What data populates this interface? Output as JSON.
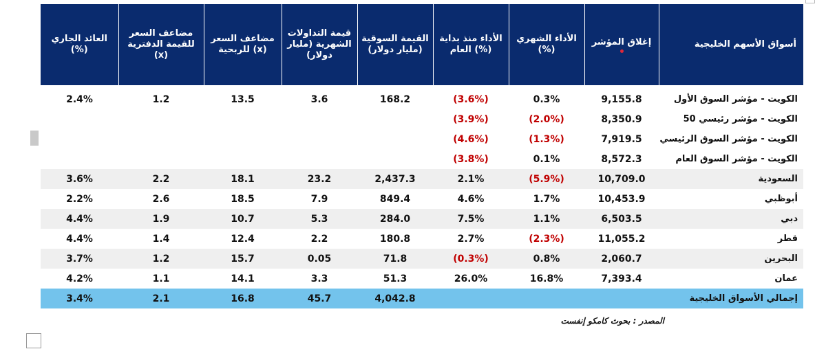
{
  "headers": [
    "أسواق الأسهم الخليجية",
    "إغلاق المؤشر",
    "الأداء الشهري (%)",
    "الأداء منذ بداية العام (%)",
    "القيمة السوقية (مليار دولار)",
    "قيمة التداولات الشهرية (مليار دولار)",
    "مضاعف السعر للربحية (x)",
    "مضاعف السعر للقيمة الدفترية (x)",
    "العائد الجاري (%)"
  ],
  "rows": [
    {
      "name": "الكويت - مؤشر السوق الأول",
      "close": "9,155.8",
      "monthly": "0.3%",
      "monthly_neg": false,
      "ytd": "(3.6%)",
      "ytd_neg": true,
      "mcap": "168.2",
      "turnover": "3.6",
      "pe": "13.5",
      "pb": "1.2",
      "yield": "2.4%",
      "shade": "white"
    },
    {
      "name": "الكويت - مؤشر رئيسي 50",
      "close": "8,350.9",
      "monthly": "(2.0%)",
      "monthly_neg": true,
      "ytd": "(3.9%)",
      "ytd_neg": true,
      "mcap": "",
      "turnover": "",
      "pe": "",
      "pb": "",
      "yield": "",
      "shade": "white"
    },
    {
      "name": "الكويت - مؤشر السوق الرئيسي",
      "close": "7,919.5",
      "monthly": "(1.3%)",
      "monthly_neg": true,
      "ytd": "(4.6%)",
      "ytd_neg": true,
      "mcap": "",
      "turnover": "",
      "pe": "",
      "pb": "",
      "yield": "",
      "shade": "white"
    },
    {
      "name": "الكويت - مؤشر السوق العام",
      "close": "8,572.3",
      "monthly": "0.1%",
      "monthly_neg": false,
      "ytd": "(3.8%)",
      "ytd_neg": true,
      "mcap": "",
      "turnover": "",
      "pe": "",
      "pb": "",
      "yield": "",
      "shade": "white"
    },
    {
      "name": "السعودية",
      "close": "10,709.0",
      "monthly": "(5.9%)",
      "monthly_neg": true,
      "ytd": "2.1%",
      "ytd_neg": false,
      "mcap": "2,437.3",
      "turnover": "23.2",
      "pe": "18.1",
      "pb": "2.2",
      "yield": "3.6%",
      "shade": "grey"
    },
    {
      "name": "أبوظبي",
      "close": "10,453.9",
      "monthly": "1.7%",
      "monthly_neg": false,
      "ytd": "4.6%",
      "ytd_neg": false,
      "mcap": "849.4",
      "turnover": "7.9",
      "pe": "18.5",
      "pb": "2.6",
      "yield": "2.2%",
      "shade": "white"
    },
    {
      "name": "دبي",
      "close": "6,503.5",
      "monthly": "1.1%",
      "monthly_neg": false,
      "ytd": "7.5%",
      "ytd_neg": false,
      "mcap": "284.0",
      "turnover": "5.3",
      "pe": "10.7",
      "pb": "1.9",
      "yield": "4.4%",
      "shade": "grey"
    },
    {
      "name": "قطر",
      "close": "11,055.2",
      "monthly": "(2.3%)",
      "monthly_neg": true,
      "ytd": "2.7%",
      "ytd_neg": false,
      "mcap": "180.8",
      "turnover": "2.2",
      "pe": "12.4",
      "pb": "1.4",
      "yield": "4.4%",
      "shade": "white"
    },
    {
      "name": "البحرين",
      "close": "2,060.7",
      "monthly": "0.8%",
      "monthly_neg": false,
      "ytd": "(0.3%)",
      "ytd_neg": true,
      "mcap": "71.8",
      "turnover": "0.05",
      "pe": "15.7",
      "pb": "1.2",
      "yield": "3.7%",
      "shade": "grey"
    },
    {
      "name": "عمان",
      "close": "7,393.4",
      "monthly": "16.8%",
      "monthly_neg": false,
      "ytd": "26.0%",
      "ytd_neg": false,
      "mcap": "51.3",
      "turnover": "3.3",
      "pe": "14.1",
      "pb": "1.1",
      "yield": "4.2%",
      "shade": "white"
    }
  ],
  "total": {
    "name": "إجمالي الأسواق الخليجية",
    "close": "",
    "monthly": "",
    "ytd": "",
    "mcap": "4,042.8",
    "turnover": "45.7",
    "pe": "16.8",
    "pb": "2.1",
    "yield": "3.4%"
  },
  "source": "المصدر : بحوث كامكو إنفست",
  "colors": {
    "header_bg": "#0a2b6e",
    "total_bg": "#73c3ec",
    "negative": "#c00000",
    "alt_row": "#efefef"
  }
}
